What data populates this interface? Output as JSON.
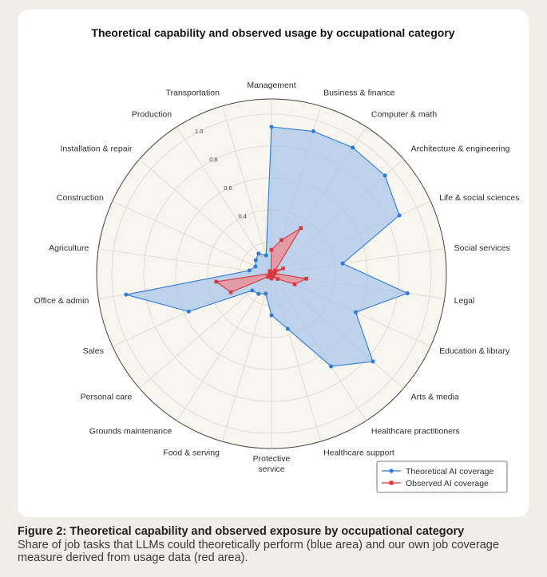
{
  "chart_data": {
    "type": "radar",
    "title": "Theoretical capability and observed usage by occupational category",
    "categories": [
      "Management",
      "Business & finance",
      "Computer & math",
      "Architecture & engineering",
      "Life & social sciences",
      "Social services",
      "Legal",
      "Education & library",
      "Arts & media",
      "Healthcare practitioners",
      "Healthcare support",
      "Protective service",
      "Food & serving",
      "Grounds maintenance",
      "Personal care",
      "Sales",
      "Office & admin",
      "Agriculture",
      "Construction",
      "Installation & repair",
      "Production",
      "Transportation"
    ],
    "series": [
      {
        "name": "Theoretical AI coverage",
        "color": "#2f7ad6",
        "fill": "#a9c6ea",
        "marker": "circle",
        "values": [
          0.92,
          0.93,
          0.94,
          0.94,
          0.88,
          0.45,
          0.86,
          0.58,
          0.84,
          0.69,
          0.36,
          0.26,
          0.13,
          0.15,
          0.16,
          0.57,
          0.92,
          0.14,
          0.11,
          0.13,
          0.15,
          0.12
        ]
      },
      {
        "name": "Observed AI coverage",
        "color": "#d9363e",
        "fill": "#ee8a8e",
        "marker": "square",
        "values": [
          0.15,
          0.22,
          0.34,
          0.03,
          0.08,
          0.02,
          0.22,
          0.16,
          0.05,
          0.02,
          0.02,
          0.03,
          0.02,
          0.01,
          0.03,
          0.28,
          0.35,
          0.01,
          0.01,
          0.01,
          0.02,
          0.01
        ]
      }
    ],
    "radial_ticks": [
      "0.4",
      "0.6",
      "0.8",
      "1.0"
    ],
    "rlim": [
      0,
      1
    ],
    "legend_position": "bottom-right",
    "grid": true
  },
  "caption": {
    "title": "Figure 2: Theoretical capability and observed exposure by occupational category",
    "text": "Share of job tasks that LLMs could theoretically perform (blue area) and our own job coverage measure derived from usage data (red area)."
  }
}
